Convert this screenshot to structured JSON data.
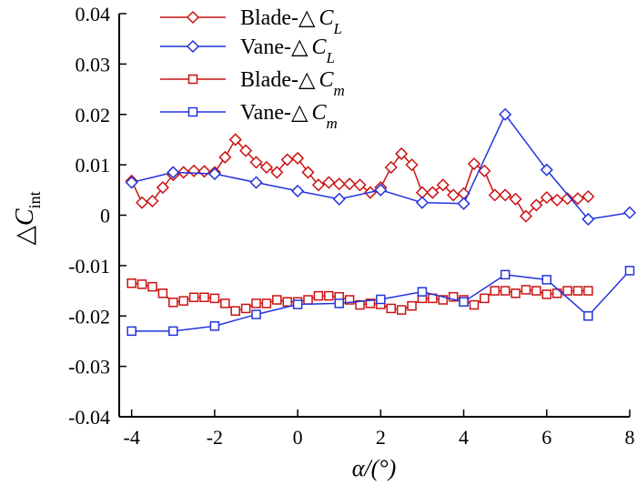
{
  "chart_data": {
    "type": "line",
    "title": "",
    "xlabel": "α/(°)",
    "ylabel": "△C_int",
    "xlim": [
      -4.3,
      8
    ],
    "ylim": [
      -0.04,
      0.04
    ],
    "x_ticks": [
      -4,
      -2,
      0,
      2,
      4,
      6,
      8
    ],
    "x_tick_labels": [
      "-4",
      "-2",
      "0",
      "2",
      "4",
      "6",
      "8"
    ],
    "y_ticks": [
      -0.04,
      -0.03,
      -0.02,
      -0.01,
      0,
      0.01,
      0.02,
      0.03,
      0.04
    ],
    "y_tick_labels": [
      "-0.04",
      "-0.03",
      "-0.02",
      "-0.01",
      "0",
      "0.01",
      "0.02",
      "0.03",
      "0.04"
    ],
    "grid": false,
    "legend_position": "top-center",
    "series": [
      {
        "name": "Blade-△C_L",
        "legend_main": "Blade-△",
        "legend_symbol": "C",
        "legend_sub": "L",
        "color": "#cc1111",
        "marker": "diamond",
        "x": [
          -4,
          -3.75,
          -3.5,
          -3.25,
          -3,
          -2.75,
          -2.5,
          -2.25,
          -2,
          -1.75,
          -1.5,
          -1.25,
          -1,
          -0.75,
          -0.5,
          -0.25,
          0,
          0.25,
          0.5,
          0.75,
          1,
          1.25,
          1.5,
          1.75,
          2,
          2.25,
          2.5,
          2.75,
          3,
          3.25,
          3.5,
          3.75,
          4,
          4.25,
          4.5,
          4.75,
          5,
          5.25,
          5.5,
          5.75,
          6,
          6.25,
          6.5,
          6.75,
          7
        ],
        "y": [
          0.0068,
          0.0025,
          0.0028,
          0.0055,
          0.008,
          0.0085,
          0.0088,
          0.0087,
          0.0085,
          0.0115,
          0.015,
          0.0128,
          0.0105,
          0.0095,
          0.0085,
          0.011,
          0.0113,
          0.0085,
          0.006,
          0.0065,
          0.0062,
          0.0062,
          0.006,
          0.0045,
          0.0055,
          0.0095,
          0.0122,
          0.01,
          0.0045,
          0.0045,
          0.006,
          0.004,
          0.0043,
          0.0102,
          0.0088,
          0.004,
          0.004,
          0.0032,
          -0.0002,
          0.002,
          0.0035,
          0.003,
          0.0033,
          0.0033,
          0.0037
        ]
      },
      {
        "name": "Vane-△C_L",
        "legend_main": "Vane-△",
        "legend_symbol": "C",
        "legend_sub": "L",
        "color": "#2233dd",
        "marker": "diamond",
        "x": [
          -4,
          -3,
          -2,
          -1,
          0,
          1,
          2,
          3,
          4,
          5,
          6,
          7,
          8
        ],
        "y": [
          0.0065,
          0.0085,
          0.0082,
          0.0065,
          0.0048,
          0.0032,
          0.005,
          0.0025,
          0.0023,
          0.02,
          0.009,
          -0.0008,
          0.0005
        ]
      },
      {
        "name": "Blade-△C_m",
        "legend_main": "Blade-△",
        "legend_symbol": "C",
        "legend_sub": "m",
        "color": "#cc1111",
        "marker": "square",
        "x": [
          -4,
          -3.75,
          -3.5,
          -3.25,
          -3,
          -2.75,
          -2.5,
          -2.25,
          -2,
          -1.75,
          -1.5,
          -1.25,
          -1,
          -0.75,
          -0.5,
          -0.25,
          0,
          0.25,
          0.5,
          0.75,
          1,
          1.25,
          1.5,
          1.75,
          2,
          2.25,
          2.5,
          2.75,
          3,
          3.25,
          3.5,
          3.75,
          4,
          4.25,
          4.5,
          4.75,
          5,
          5.25,
          5.5,
          5.75,
          6,
          6.25,
          6.5,
          6.75,
          7
        ],
        "y": [
          -0.0135,
          -0.0137,
          -0.0142,
          -0.0155,
          -0.0173,
          -0.017,
          -0.0163,
          -0.0163,
          -0.0165,
          -0.0175,
          -0.019,
          -0.0185,
          -0.0175,
          -0.0175,
          -0.0168,
          -0.0172,
          -0.0172,
          -0.0168,
          -0.016,
          -0.016,
          -0.0162,
          -0.0168,
          -0.0178,
          -0.0175,
          -0.0177,
          -0.0185,
          -0.0188,
          -0.018,
          -0.0165,
          -0.0165,
          -0.0168,
          -0.0162,
          -0.0168,
          -0.0178,
          -0.0165,
          -0.015,
          -0.015,
          -0.0155,
          -0.0148,
          -0.015,
          -0.0157,
          -0.0155,
          -0.015,
          -0.015,
          -0.015
        ]
      },
      {
        "name": "Vane-△C_m",
        "legend_main": "Vane-△",
        "legend_symbol": "C",
        "legend_sub": "m",
        "color": "#2233dd",
        "marker": "square",
        "x": [
          -4,
          -3,
          -2,
          -1,
          0,
          1,
          2,
          3,
          4,
          5,
          6,
          7,
          8
        ],
        "y": [
          -0.023,
          -0.023,
          -0.022,
          -0.0197,
          -0.0177,
          -0.0175,
          -0.0167,
          -0.0152,
          -0.0172,
          -0.0118,
          -0.0128,
          -0.02,
          -0.011
        ]
      }
    ]
  }
}
